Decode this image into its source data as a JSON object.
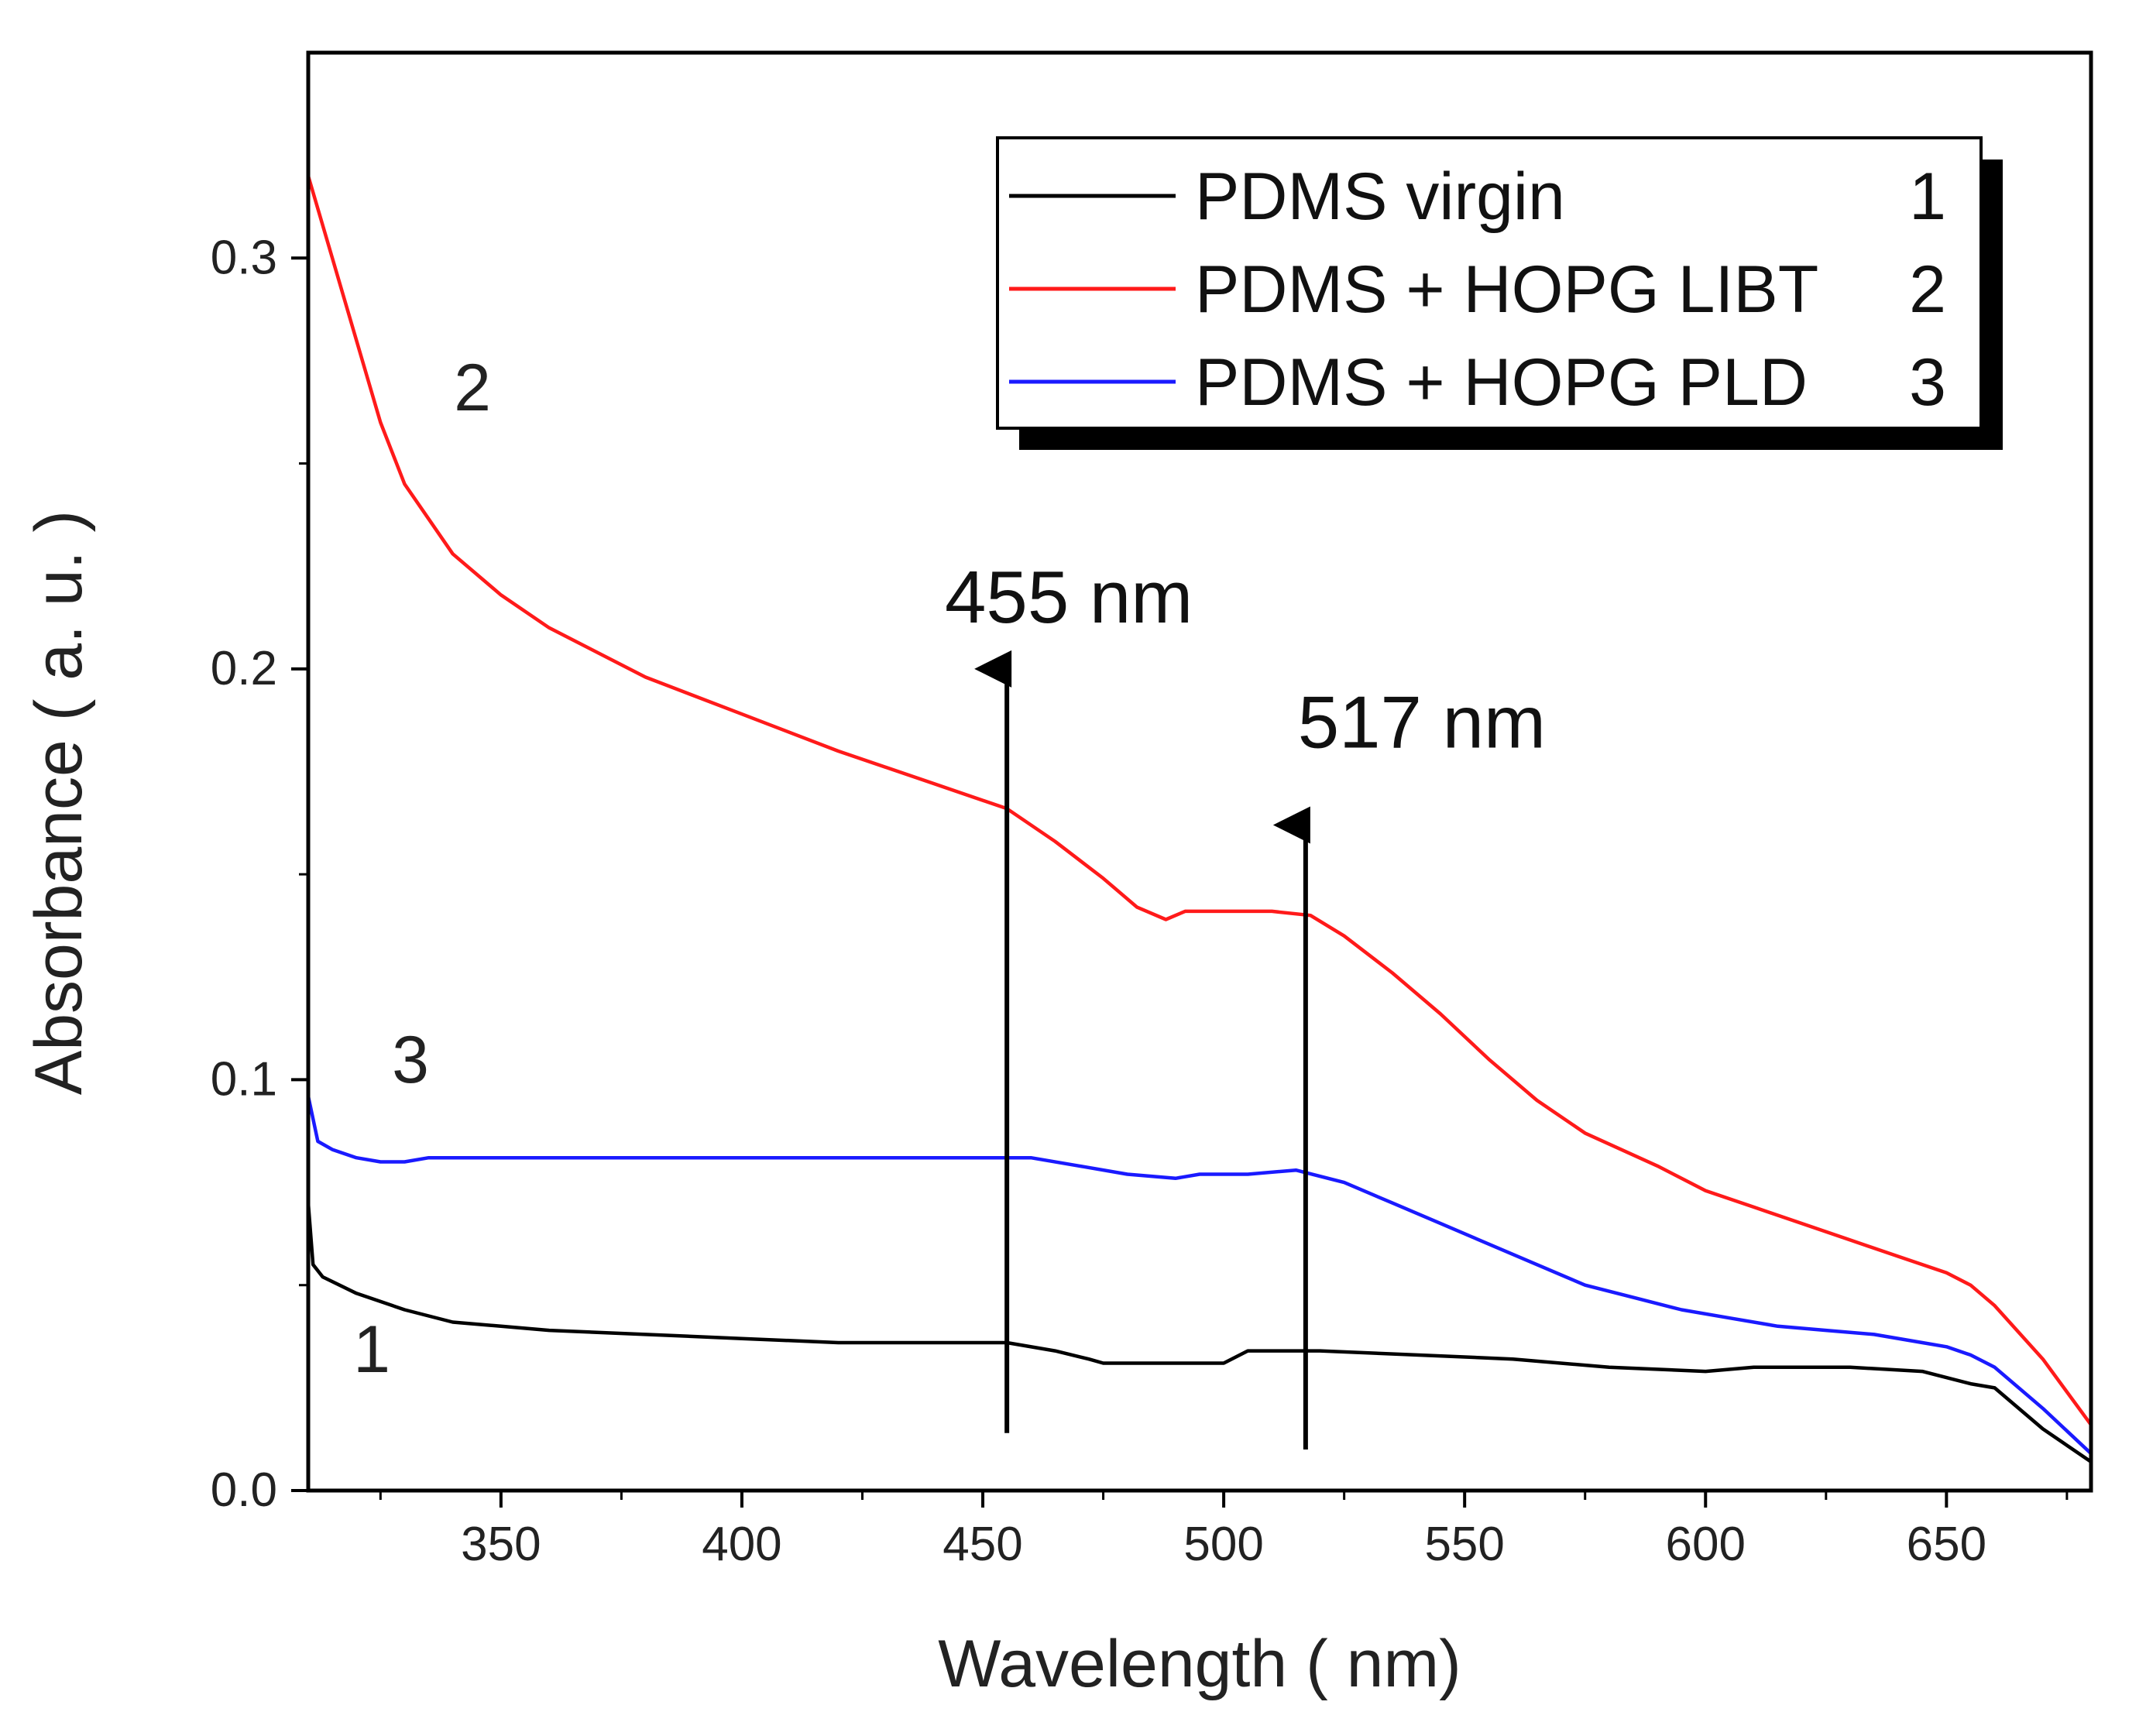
{
  "chart_data": {
    "type": "line",
    "title": "",
    "xlabel": "Wavelength ( nm)",
    "ylabel": "Absorbance ( a. u. )",
    "xlim": [
      310,
      680
    ],
    "ylim": [
      0.0,
      0.35
    ],
    "x_ticks": [
      350,
      400,
      450,
      500,
      550,
      600,
      650
    ],
    "x_tick_labels": [
      "350",
      "400",
      "450",
      "500",
      "550",
      "600",
      "650"
    ],
    "y_ticks": [
      0.0,
      0.1,
      0.2,
      0.3
    ],
    "y_tick_labels": [
      "0.0",
      "0.1",
      "0.2",
      "0.3"
    ],
    "grid": false,
    "legend_position": "top-right",
    "series": [
      {
        "name": "PDMS virgin",
        "legend_label": "PDMS virgin",
        "curve_label": "1",
        "color": "#000000",
        "points": [
          [
            310,
            0.07
          ],
          [
            311,
            0.055
          ],
          [
            313,
            0.052
          ],
          [
            320,
            0.048
          ],
          [
            330,
            0.044
          ],
          [
            340,
            0.041
          ],
          [
            350,
            0.04
          ],
          [
            360,
            0.039
          ],
          [
            380,
            0.038
          ],
          [
            400,
            0.037
          ],
          [
            420,
            0.036
          ],
          [
            440,
            0.036
          ],
          [
            455,
            0.036
          ],
          [
            465,
            0.034
          ],
          [
            472,
            0.032
          ],
          [
            475,
            0.031
          ],
          [
            480,
            0.031
          ],
          [
            500,
            0.031
          ],
          [
            505,
            0.034
          ],
          [
            520,
            0.034
          ],
          [
            540,
            0.033
          ],
          [
            560,
            0.032
          ],
          [
            580,
            0.03
          ],
          [
            600,
            0.029
          ],
          [
            610,
            0.03
          ],
          [
            630,
            0.03
          ],
          [
            645,
            0.029
          ],
          [
            655,
            0.026
          ],
          [
            660,
            0.025
          ],
          [
            670,
            0.015
          ],
          [
            680,
            0.007
          ]
        ]
      },
      {
        "name": "PDMS + HOPG LIBT",
        "legend_label": "PDMS + HOPG LIBT",
        "curve_label": "2",
        "color": "#ff1a1a",
        "points": [
          [
            310,
            0.32
          ],
          [
            315,
            0.3
          ],
          [
            320,
            0.28
          ],
          [
            325,
            0.26
          ],
          [
            330,
            0.245
          ],
          [
            340,
            0.228
          ],
          [
            350,
            0.218
          ],
          [
            360,
            0.21
          ],
          [
            380,
            0.198
          ],
          [
            400,
            0.189
          ],
          [
            420,
            0.18
          ],
          [
            440,
            0.172
          ],
          [
            455,
            0.166
          ],
          [
            465,
            0.158
          ],
          [
            475,
            0.149
          ],
          [
            482,
            0.142
          ],
          [
            488,
            0.139
          ],
          [
            492,
            0.141
          ],
          [
            500,
            0.141
          ],
          [
            510,
            0.141
          ],
          [
            518,
            0.14
          ],
          [
            525,
            0.135
          ],
          [
            535,
            0.126
          ],
          [
            545,
            0.116
          ],
          [
            555,
            0.105
          ],
          [
            565,
            0.095
          ],
          [
            575,
            0.087
          ],
          [
            590,
            0.079
          ],
          [
            600,
            0.073
          ],
          [
            610,
            0.069
          ],
          [
            620,
            0.065
          ],
          [
            630,
            0.061
          ],
          [
            640,
            0.057
          ],
          [
            650,
            0.053
          ],
          [
            655,
            0.05
          ],
          [
            660,
            0.045
          ],
          [
            670,
            0.032
          ],
          [
            680,
            0.016
          ]
        ]
      },
      {
        "name": "PDMS + HOPG PLD",
        "legend_label": "PDMS + HOPG PLD",
        "curve_label": "3",
        "color": "#1a1aff",
        "points": [
          [
            310,
            0.096
          ],
          [
            312,
            0.085
          ],
          [
            315,
            0.083
          ],
          [
            320,
            0.081
          ],
          [
            325,
            0.08
          ],
          [
            330,
            0.08
          ],
          [
            335,
            0.081
          ],
          [
            350,
            0.081
          ],
          [
            400,
            0.081
          ],
          [
            450,
            0.081
          ],
          [
            460,
            0.081
          ],
          [
            470,
            0.079
          ],
          [
            480,
            0.077
          ],
          [
            490,
            0.076
          ],
          [
            495,
            0.077
          ],
          [
            505,
            0.077
          ],
          [
            515,
            0.078
          ],
          [
            525,
            0.075
          ],
          [
            535,
            0.07
          ],
          [
            545,
            0.065
          ],
          [
            555,
            0.06
          ],
          [
            565,
            0.055
          ],
          [
            575,
            0.05
          ],
          [
            585,
            0.047
          ],
          [
            595,
            0.044
          ],
          [
            605,
            0.042
          ],
          [
            615,
            0.04
          ],
          [
            625,
            0.039
          ],
          [
            635,
            0.038
          ],
          [
            645,
            0.036
          ],
          [
            650,
            0.035
          ],
          [
            655,
            0.033
          ],
          [
            660,
            0.03
          ],
          [
            670,
            0.02
          ],
          [
            680,
            0.009
          ]
        ]
      }
    ],
    "annotations": [
      {
        "text": "455 nm",
        "x": 455,
        "arrow_from": 0.014,
        "arrow_to": 0.2
      },
      {
        "text": "517 nm",
        "x": 517,
        "arrow_from": 0.01,
        "arrow_to": 0.162
      }
    ]
  }
}
